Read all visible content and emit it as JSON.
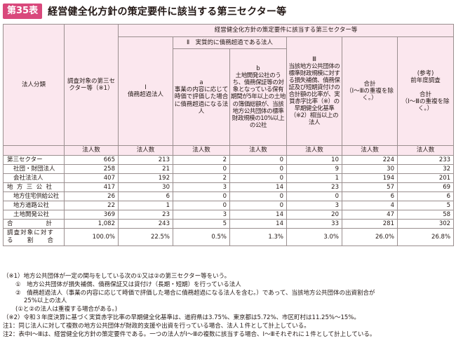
{
  "header": {
    "badge": "第35表",
    "title": "経営健全化方針の策定要件に該当する第三セクター等"
  },
  "table": {
    "col_category": "法人分類",
    "col_target": "調査対象の第三セクター等（※1）",
    "group_top": "経営健全化方針の策定要件に該当する第三セクター等",
    "col_i_mark": "Ⅰ",
    "col_i_text": "債務超過法人",
    "group_ii": "Ⅱ　実質的に債務超過である法人",
    "col_a_mark": "a",
    "col_a_text": "事業の内容に応じて時価で評価した場合に債務超過になる法人",
    "col_b_mark": "b",
    "col_b_text": "土地開発公社のうち、債務保証等の対象となっている保有期間が5年以上の土地の簿価総額が、当該地方公共団体の標準財政規模の10%以上の公社",
    "col_iii_mark": "Ⅲ",
    "col_iii_text": "当該地方公共団体の標準財政規模に対する損失補償、債務保証及び短期貸付けの合計額の比率が、実質赤字比率（※）の早期健全化基準（※2）相当以上の法人",
    "col_total_head": "合計",
    "col_total_note": "（Ⅰ～Ⅲの重複を除く。）",
    "col_prev_1": "(参考)",
    "col_prev_2": "前年度調査",
    "col_prev_3": "合計",
    "col_prev_4": "（Ⅰ～Ⅲの重複を除く。）",
    "unit": "法人数",
    "rows": [
      {
        "label": "第三セクター",
        "values": [
          "665",
          "213",
          "2",
          "0",
          "10",
          "224",
          "233"
        ]
      },
      {
        "label": "社団・財団法人",
        "values": [
          "258",
          "21",
          "0",
          "0",
          "9",
          "30",
          "32"
        ]
      },
      {
        "label": "会社法法人",
        "values": [
          "407",
          "192",
          "2",
          "0",
          "1",
          "194",
          "201"
        ]
      },
      {
        "label": "地方三公社",
        "values": [
          "417",
          "30",
          "3",
          "14",
          "23",
          "57",
          "69"
        ]
      },
      {
        "label": "地方住宅供給公社",
        "values": [
          "26",
          "6",
          "0",
          "0",
          "0",
          "6",
          "6"
        ]
      },
      {
        "label": "地方道路公社",
        "values": [
          "22",
          "1",
          "0",
          "0",
          "3",
          "4",
          "5"
        ]
      },
      {
        "label": "土地開発公社",
        "values": [
          "369",
          "23",
          "3",
          "14",
          "20",
          "47",
          "58"
        ]
      },
      {
        "label": "合計",
        "values": [
          "1,082",
          "243",
          "5",
          "14",
          "33",
          "281",
          "302"
        ]
      },
      {
        "label": "調査対象に対する割合",
        "values": [
          "100.0%",
          "22.5%",
          "0.5%",
          "1.3%",
          "3.0%",
          "26.0%",
          "26.8%"
        ]
      }
    ]
  },
  "notes": [
    "（※1）地方公共団体が一定の関与をしている次の①又は②の第三セクター等をいう。",
    "①　地方公共団体が損失補償、債務保証又は貸付け（長期・短期）を行っている法人",
    "②　債務超過法人（事業の内容に応じて時価で評価した場合に債務超過になる法人を含む。）であって、当該地方公共団体の出資割合が",
    "25%以上の法人",
    "(①と②の法人は重複する場合がある。)",
    "（※2）令和３年度決算に基づく実質赤字比率の早期健全化基準は、道府県は3.75%、東京都は5.72%、市区町村は11.25%～15%。",
    "注1：同じ法人に対して複数の地方公共団体が財政的支援や出資を行っている場合、法人１件として計上している。",
    "注2：表中Ⅰ～Ⅲは、経営健全化方針の策定要件である。一つの法人がⅠ～Ⅲの複数に該当する場合、Ⅰ～Ⅲそれぞれに１件として計上している。"
  ]
}
